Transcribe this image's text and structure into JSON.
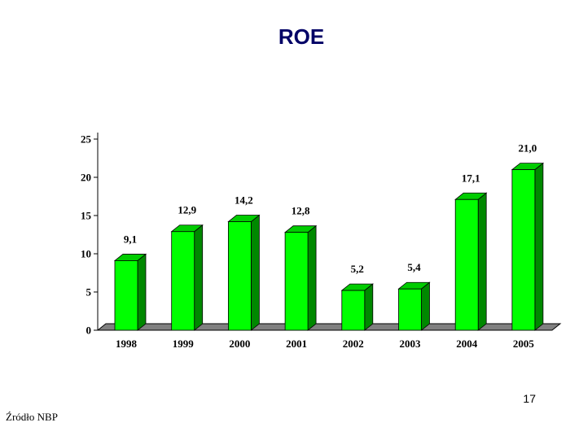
{
  "page": {
    "title": "ROE",
    "page_number": "17",
    "source": "Źródło NBP"
  },
  "chart_data": {
    "type": "bar",
    "title": "",
    "xlabel": "",
    "ylabel": "",
    "categories": [
      "1998",
      "1999",
      "2000",
      "2001",
      "2002",
      "2003",
      "2004",
      "2005"
    ],
    "values": [
      9.1,
      12.9,
      14.2,
      12.8,
      5.2,
      5.4,
      17.1,
      21.0
    ],
    "value_labels": [
      "9,1",
      "12,9",
      "14,2",
      "12,8",
      "5,2",
      "5,4",
      "17,1",
      "21,0"
    ],
    "y_ticks": [
      0,
      5,
      10,
      15,
      20,
      25
    ],
    "ylim": [
      0,
      25
    ],
    "grid": false,
    "legend": "none",
    "style": "3d-bar",
    "colors": {
      "bar_front": "#00ff00",
      "bar_top": "#00cc00",
      "bar_side": "#008800",
      "floor": "#808080"
    }
  }
}
